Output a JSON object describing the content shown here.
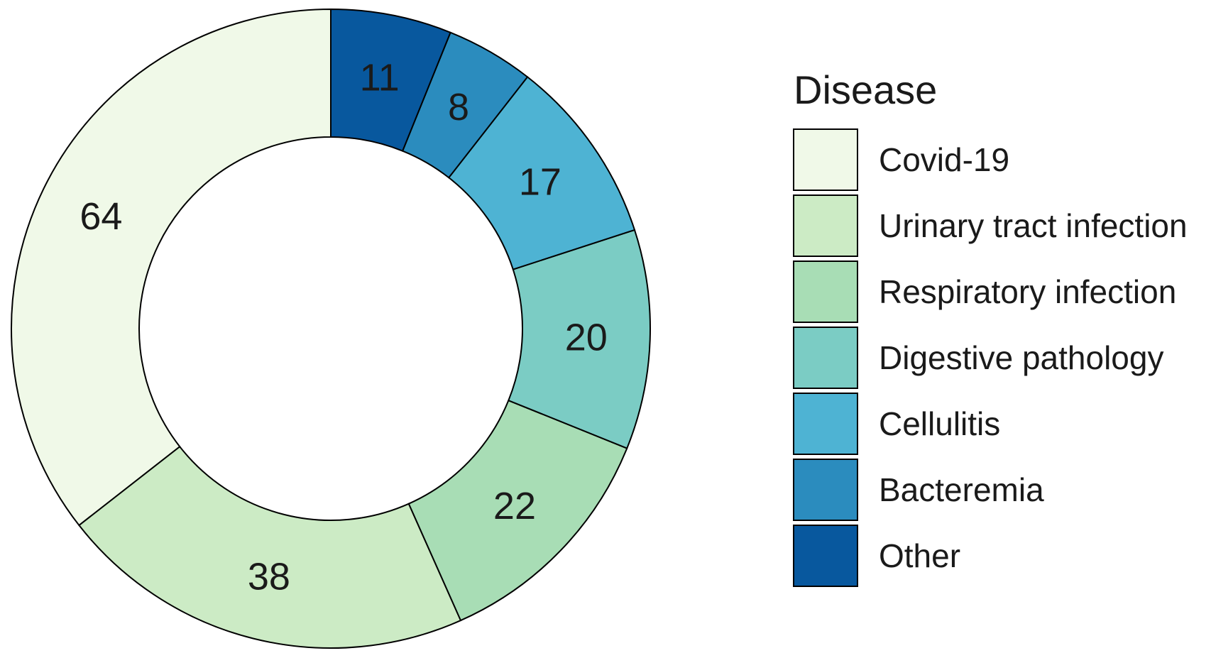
{
  "chart_data": {
    "type": "pie",
    "variant": "donut",
    "legend_title": "Disease",
    "legend_position": "right",
    "slices": [
      {
        "label": "Covid-19",
        "value": 64,
        "color": "#f0f9e8"
      },
      {
        "label": "Urinary tract infection",
        "value": 38,
        "color": "#ccebc5"
      },
      {
        "label": "Respiratory infection",
        "value": 22,
        "color": "#a8ddb5"
      },
      {
        "label": "Digestive pathology",
        "value": 20,
        "color": "#7bccc4"
      },
      {
        "label": "Cellulitis",
        "value": 17,
        "color": "#4eb3d3"
      },
      {
        "label": "Bacteremia",
        "value": 8,
        "color": "#2b8cbe"
      },
      {
        "label": "Other",
        "value": 11,
        "color": "#08589e"
      }
    ]
  }
}
